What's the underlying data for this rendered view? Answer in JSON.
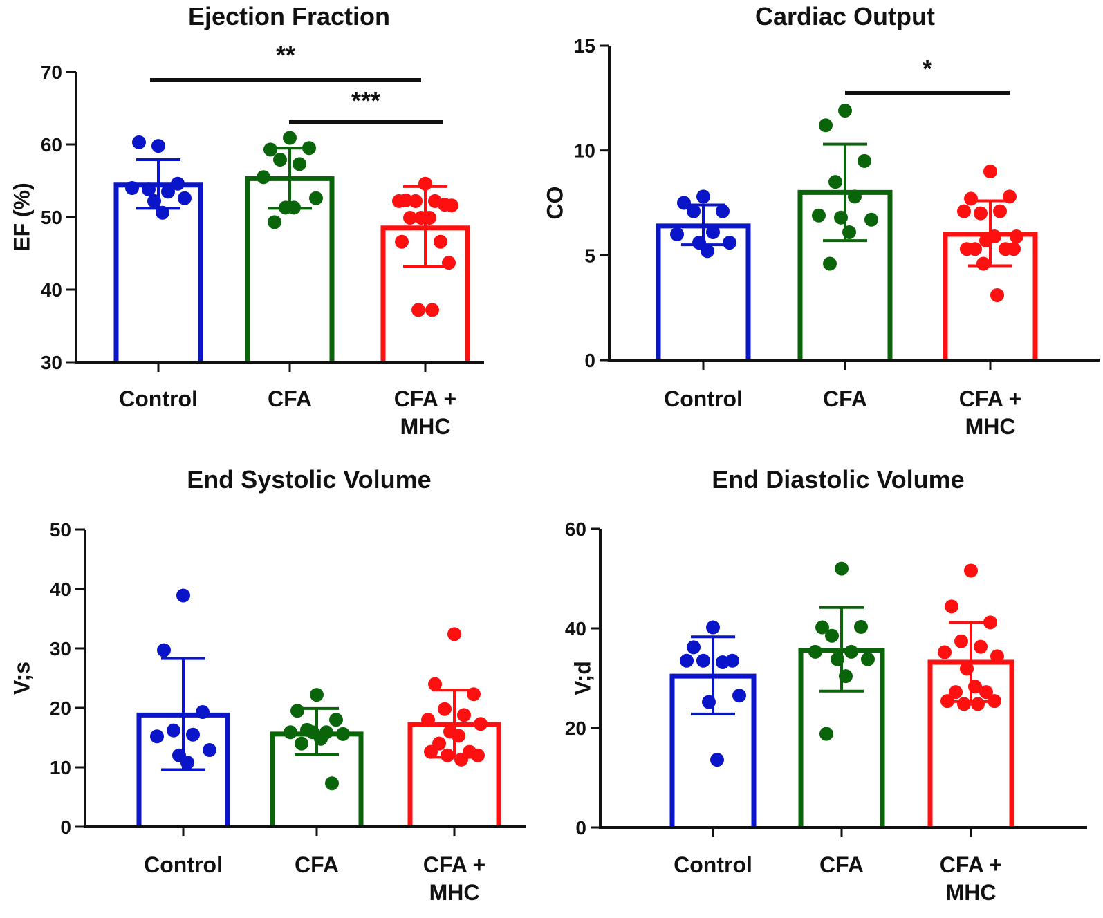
{
  "chart_data": [
    {
      "type": "bar",
      "title": "Ejection Fraction",
      "xlabel": "",
      "ylabel": "EF (%)",
      "ylim": [
        30,
        70
      ],
      "yticks": [
        30,
        40,
        50,
        60,
        70
      ],
      "categories": [
        "Control",
        "CFA",
        "CFA +\nMHC"
      ],
      "category_lines": [
        [
          "Control"
        ],
        [
          "CFA"
        ],
        [
          "CFA +",
          "MHC"
        ]
      ],
      "colors": [
        "#0a14c8",
        "#0a640a",
        "#ff1010"
      ],
      "means": [
        54.4,
        55.3,
        48.5
      ],
      "error_low": [
        51.2,
        51.2,
        43.2
      ],
      "error_high": [
        57.9,
        59.5,
        54.2
      ],
      "points": [
        [
          59.8,
          60.3,
          54.6,
          53.8,
          53.5,
          54.0,
          52.6,
          52.2,
          50.6
        ],
        [
          60.9,
          59.3,
          59.5,
          57.9,
          57.3,
          55.5,
          52.6,
          51.3,
          51.3,
          49.3
        ],
        [
          54.6,
          52.3,
          51.7,
          52.2,
          52.2,
          52.2,
          51.6,
          49.9,
          49.9,
          49.9,
          46.6,
          46.6,
          43.7,
          37.2,
          37.2
        ]
      ],
      "significance": [
        {
          "from": 0,
          "to": 2,
          "label": "**"
        },
        {
          "from": 1,
          "to": 2,
          "label": "***"
        }
      ]
    },
    {
      "type": "bar",
      "title": "Cardiac Output",
      "xlabel": "",
      "ylabel": "CO",
      "ylim": [
        0,
        15
      ],
      "yticks": [
        0,
        5,
        10,
        15
      ],
      "categories": [
        "Control",
        "CFA",
        "CFA +\nMHC"
      ],
      "category_lines": [
        [
          "Control"
        ],
        [
          "CFA"
        ],
        [
          "CFA +",
          "MHC"
        ]
      ],
      "colors": [
        "#0a14c8",
        "#0a640a",
        "#ff1010"
      ],
      "means": [
        6.4,
        8.0,
        6.0
      ],
      "error_low": [
        5.5,
        5.7,
        4.5
      ],
      "error_high": [
        7.4,
        10.3,
        7.6
      ],
      "points": [
        [
          7.8,
          7.5,
          7.1,
          7.1,
          6.1,
          6.0,
          5.6,
          5.6,
          5.2
        ],
        [
          11.9,
          11.2,
          9.5,
          8.5,
          7.8,
          6.9,
          6.7,
          6.8,
          6.1,
          4.6
        ],
        [
          9.0,
          7.7,
          7.8,
          7.0,
          7.1,
          7.1,
          5.9,
          5.7,
          5.9,
          5.3,
          5.3,
          5.3,
          5.3,
          4.6,
          3.1
        ]
      ],
      "significance": [
        {
          "from": 1,
          "to": 2,
          "label": "*"
        }
      ]
    },
    {
      "type": "bar",
      "title": "End Systolic Volume",
      "xlabel": "",
      "ylabel": "V;s",
      "ylim": [
        0,
        50
      ],
      "yticks": [
        0,
        10,
        20,
        30,
        40,
        50
      ],
      "categories": [
        "Control",
        "CFA",
        "CFA +\nMHC"
      ],
      "category_lines": [
        [
          "Control"
        ],
        [
          "CFA"
        ],
        [
          "CFA +",
          "MHC"
        ]
      ],
      "colors": [
        "#0a14c8",
        "#0a640a",
        "#ff1010"
      ],
      "means": [
        18.8,
        15.6,
        17.2
      ],
      "error_low": [
        9.6,
        12.1,
        11.7
      ],
      "error_high": [
        28.3,
        19.9,
        23.0
      ],
      "points": [
        [
          38.9,
          29.7,
          19.3,
          16.2,
          15.5,
          15.2,
          12.9,
          12.0,
          10.8
        ],
        [
          22.2,
          19.5,
          18.0,
          16.3,
          15.9,
          15.9,
          15.6,
          15.9,
          14.8,
          14.0,
          7.3
        ],
        [
          32.4,
          24.0,
          22.3,
          19.8,
          18.8,
          18.0,
          17.3,
          16.0,
          15.3,
          14.0,
          12.6,
          12.6,
          12.0,
          12.0,
          11.3
        ]
      ],
      "significance": []
    },
    {
      "type": "bar",
      "title": "End Diastolic Volume",
      "xlabel": "",
      "ylabel": "V;d",
      "ylim": [
        0,
        60
      ],
      "yticks": [
        0,
        20,
        40,
        60
      ],
      "categories": [
        "Control",
        "CFA",
        "CFA +\nMHC"
      ],
      "category_lines": [
        [
          "Control"
        ],
        [
          "CFA"
        ],
        [
          "CFA +",
          "MHC"
        ]
      ],
      "colors": [
        "#0a14c8",
        "#0a640a",
        "#ff1010"
      ],
      "means": [
        30.4,
        35.6,
        33.2
      ],
      "error_low": [
        22.8,
        27.4,
        25.3
      ],
      "error_high": [
        38.3,
        44.2,
        41.2
      ],
      "points": [
        [
          40.2,
          36.2,
          33.5,
          33.5,
          33.2,
          33.5,
          26.5,
          25.2,
          13.6
        ],
        [
          52.0,
          40.2,
          40.3,
          38.5,
          35.3,
          35.3,
          33.8,
          33.8,
          30.4,
          18.8
        ],
        [
          51.6,
          44.4,
          41.2,
          37.4,
          36.3,
          35.2,
          34.4,
          31.9,
          28.3,
          27.2,
          27.2,
          25.4,
          25.4,
          24.8,
          24.8
        ]
      ],
      "significance": []
    }
  ]
}
